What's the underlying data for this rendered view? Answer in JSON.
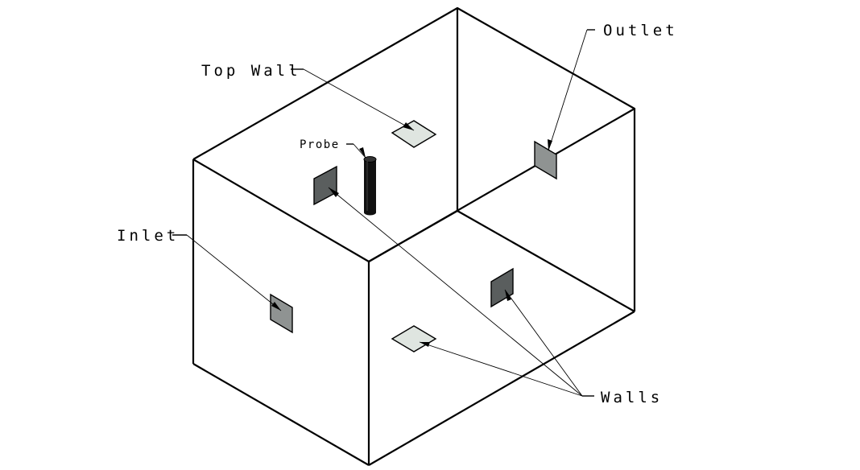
{
  "labels": {
    "top_wall": "Top Wall",
    "probe": "Probe",
    "outlet": "Outlet",
    "inlet": "Inlet",
    "walls": "Walls"
  },
  "colors": {
    "line": "#000000",
    "light_panel": "#dfe5e0",
    "mid_panel": "#8f9392",
    "dark_panel": "#5a5e5e",
    "probe": "#111111"
  }
}
